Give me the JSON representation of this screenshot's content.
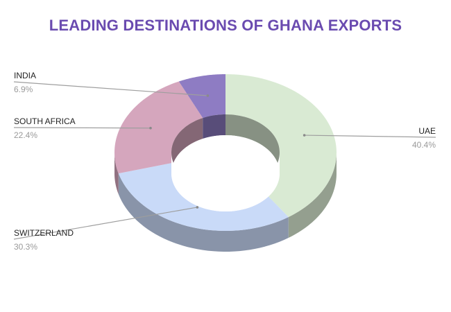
{
  "chart_data": {
    "type": "pie",
    "title": "LEADING DESTINATIONS OF GHANA EXPORTS",
    "categories": [
      "UAE",
      "SWITZERLAND",
      "SOUTH AFRICA",
      "INDIA"
    ],
    "values": [
      40.4,
      30.3,
      22.4,
      6.9
    ],
    "value_labels": [
      "40.4%",
      "30.3%",
      "22.4%",
      "6.9%"
    ],
    "style": "3d-donut",
    "colors": [
      "#d9ead3",
      "#c9daf8",
      "#d5a6bd",
      "#8e7cc3"
    ],
    "title_color": "#6a4bb0",
    "legend": "none"
  }
}
